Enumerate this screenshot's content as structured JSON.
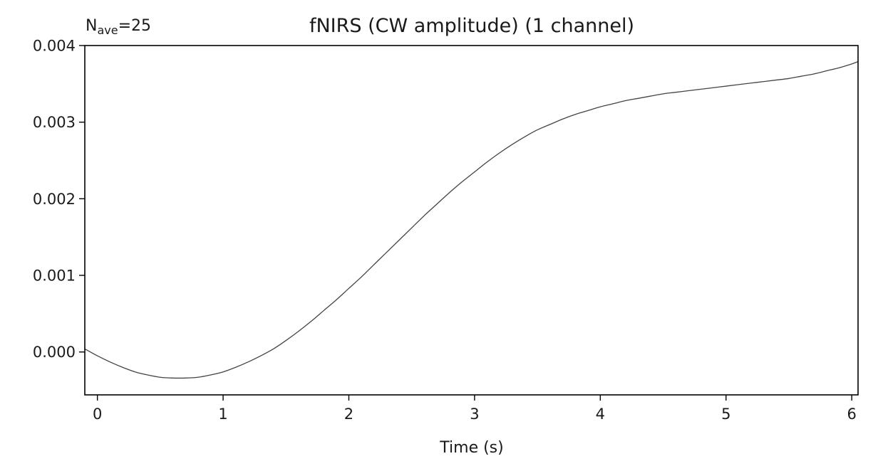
{
  "chart_data": {
    "type": "line",
    "title": "fNIRS (CW amplitude) (1 channel)",
    "annotation": {
      "prefix": "N",
      "subscript": "ave",
      "suffix": "=25"
    },
    "xlabel": "Time (s)",
    "ylabel": "",
    "xlim": [
      -0.1,
      6.05
    ],
    "ylim": [
      -0.00056,
      0.004
    ],
    "xticks": [
      0,
      1,
      2,
      3,
      4,
      5,
      6
    ],
    "xtick_labels": [
      "0",
      "1",
      "2",
      "3",
      "4",
      "5",
      "6"
    ],
    "yticks": [
      0.0,
      0.001,
      0.002,
      0.003,
      0.004
    ],
    "ytick_labels": [
      "0.000",
      "0.001",
      "0.002",
      "0.003",
      "0.004"
    ],
    "grid": false,
    "line_color": "#444444",
    "series": [
      {
        "x": [
          -0.1,
          0.0,
          0.1,
          0.2,
          0.3,
          0.4,
          0.5,
          0.6,
          0.7,
          0.8,
          0.9,
          1.0,
          1.1,
          1.2,
          1.3,
          1.4,
          1.5,
          1.6,
          1.7,
          1.8,
          1.9,
          2.0,
          2.1,
          2.2,
          2.3,
          2.4,
          2.5,
          2.6,
          2.7,
          2.8,
          2.9,
          3.0,
          3.1,
          3.2,
          3.3,
          3.4,
          3.5,
          3.6,
          3.7,
          3.8,
          3.9,
          4.0,
          4.1,
          4.2,
          4.3,
          4.4,
          4.5,
          4.6,
          4.7,
          4.8,
          4.9,
          5.0,
          5.1,
          5.2,
          5.3,
          5.4,
          5.5,
          5.6,
          5.7,
          5.8,
          5.9,
          6.0,
          6.05
        ],
        "values": [
          4e-05,
          -5e-05,
          -0.00013,
          -0.0002,
          -0.00026,
          -0.0003,
          -0.00033,
          -0.00034,
          -0.00034,
          -0.00033,
          -0.0003,
          -0.00026,
          -0.0002,
          -0.00013,
          -5e-05,
          4e-05,
          0.00015,
          0.00027,
          0.0004,
          0.00054,
          0.00068,
          0.00083,
          0.00098,
          0.00114,
          0.0013,
          0.00146,
          0.00162,
          0.00178,
          0.00193,
          0.00208,
          0.00222,
          0.00235,
          0.00248,
          0.0026,
          0.00271,
          0.00281,
          0.0029,
          0.00297,
          0.00304,
          0.0031,
          0.00315,
          0.0032,
          0.00324,
          0.00328,
          0.00331,
          0.00334,
          0.00337,
          0.00339,
          0.00341,
          0.00343,
          0.00345,
          0.00347,
          0.00349,
          0.00351,
          0.00353,
          0.00355,
          0.00357,
          0.0036,
          0.00363,
          0.00367,
          0.00371,
          0.00376,
          0.00379
        ]
      }
    ]
  }
}
